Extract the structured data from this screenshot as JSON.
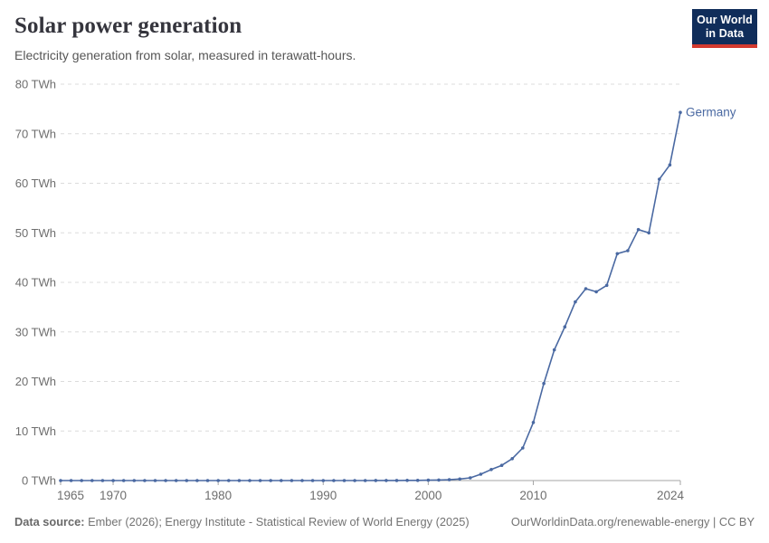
{
  "header": {
    "title": "Solar power generation",
    "subtitle": "Electricity generation from solar, measured in terawatt-hours.",
    "logo": {
      "line1": "Our World",
      "line2": "in Data",
      "bg_color": "#102d5a",
      "accent_color": "#d33a2f"
    }
  },
  "chart_data": {
    "type": "line",
    "title": "Solar power generation",
    "unit": "TWh",
    "grid": "dashed",
    "legend_position": "end-of-line-label",
    "xlim": [
      1965,
      2024
    ],
    "ylim": [
      0,
      80
    ],
    "y_ticks": [
      {
        "value": 0,
        "label": "0 TWh"
      },
      {
        "value": 10,
        "label": "10 TWh"
      },
      {
        "value": 20,
        "label": "20 TWh"
      },
      {
        "value": 30,
        "label": "30 TWh"
      },
      {
        "value": 40,
        "label": "40 TWh"
      },
      {
        "value": 50,
        "label": "50 TWh"
      },
      {
        "value": 60,
        "label": "60 TWh"
      },
      {
        "value": 70,
        "label": "70 TWh"
      },
      {
        "value": 80,
        "label": "80 TWh"
      }
    ],
    "x_ticks": [
      {
        "value": 1965,
        "label": "1965",
        "align": "start"
      },
      {
        "value": 1970,
        "label": "1970",
        "align": "middle"
      },
      {
        "value": 1980,
        "label": "1980",
        "align": "middle"
      },
      {
        "value": 1990,
        "label": "1990",
        "align": "middle"
      },
      {
        "value": 2000,
        "label": "2000",
        "align": "middle"
      },
      {
        "value": 2010,
        "label": "2010",
        "align": "middle"
      },
      {
        "value": 2024,
        "label": "2024",
        "align": "end"
      }
    ],
    "x": [
      1965,
      1966,
      1967,
      1968,
      1969,
      1970,
      1971,
      1972,
      1973,
      1974,
      1975,
      1976,
      1977,
      1978,
      1979,
      1980,
      1981,
      1982,
      1983,
      1984,
      1985,
      1986,
      1987,
      1988,
      1989,
      1990,
      1991,
      1992,
      1993,
      1994,
      1995,
      1996,
      1997,
      1998,
      1999,
      2000,
      2001,
      2002,
      2003,
      2004,
      2005,
      2006,
      2007,
      2008,
      2009,
      2010,
      2011,
      2012,
      2013,
      2014,
      2015,
      2016,
      2017,
      2018,
      2019,
      2020,
      2021,
      2022,
      2023,
      2024
    ],
    "series": [
      {
        "name": "Germany",
        "color": "#4a69a2",
        "values": [
          0,
          0,
          0,
          0,
          0,
          0,
          0,
          0,
          0,
          0,
          0,
          0,
          0,
          0,
          0,
          0,
          0,
          0,
          0,
          0,
          0,
          0,
          0,
          0,
          0,
          0.001,
          0.002,
          0.004,
          0.006,
          0.008,
          0.011,
          0.016,
          0.026,
          0.032,
          0.042,
          0.064,
          0.116,
          0.162,
          0.313,
          0.557,
          1.282,
          2.22,
          3.075,
          4.42,
          6.584,
          11.729,
          19.599,
          26.38,
          31.01,
          36.056,
          38.726,
          38.098,
          39.401,
          45.784,
          46.392,
          50.649,
          49.992,
          60.824,
          63.7,
          74.3
        ]
      }
    ]
  },
  "footer": {
    "source_label": "Data source:",
    "source_text": " Ember (2026); Energy Institute - Statistical Review of World Energy (2025)",
    "link_text": "OurWorldinData.org/renewable-energy | CC BY"
  }
}
